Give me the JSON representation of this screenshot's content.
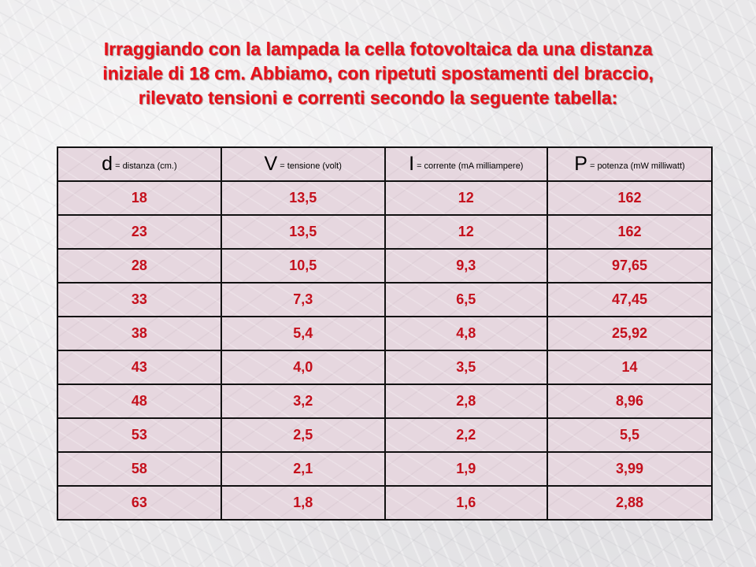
{
  "title": {
    "lines": [
      "Irraggiando con la lampada la cella fotovoltaica da una distanza",
      "iniziale di 18 cm. Abbiamo, con ripetuti spostamenti del braccio,",
      "rilevato tensioni e correnti secondo la seguente tabella:"
    ]
  },
  "table": {
    "headers": [
      {
        "symbol": "d",
        "desc": " = distanza (cm.)"
      },
      {
        "symbol": "V",
        "desc": " = tensione (volt)"
      },
      {
        "symbol": "I",
        "desc": " =  corrente  (mA milliampere)"
      },
      {
        "symbol": "P",
        "desc": " = potenza (mW milliwatt)"
      }
    ],
    "rows": [
      [
        "18",
        "13,5",
        "12",
        "162"
      ],
      [
        "23",
        "13,5",
        "12",
        "162"
      ],
      [
        "28",
        "10,5",
        "9,3",
        "97,65"
      ],
      [
        "33",
        "7,3",
        "6,5",
        "47,45"
      ],
      [
        "38",
        "5,4",
        "4,8",
        "25,92"
      ],
      [
        "43",
        "4,0",
        "3,5",
        "14"
      ],
      [
        "48",
        "3,2",
        "2,8",
        "8,96"
      ],
      [
        "53",
        "2,5",
        "2,2",
        "5,5"
      ],
      [
        "58",
        "2,1",
        "1,9",
        "3,99"
      ],
      [
        "63",
        "1,8",
        "1,6",
        "2,88"
      ]
    ]
  },
  "colors": {
    "title": "#e8101a",
    "cell_text": "#c4101c",
    "table_bg": "#e6d7df"
  }
}
